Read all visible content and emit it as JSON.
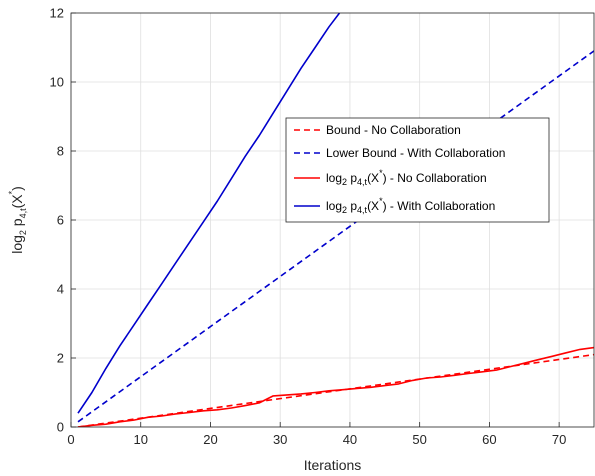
{
  "chart_data": {
    "type": "line",
    "xlabel": "Iterations",
    "ylabel": {
      "base": "log",
      "sub1": "2",
      "middle": " p",
      "sub2": "4,t",
      "arg": "(X",
      "sup": "*",
      "close": ")"
    },
    "xlim": [
      0,
      75
    ],
    "ylim": [
      0,
      12
    ],
    "xticks": [
      "0",
      "10",
      "20",
      "30",
      "40",
      "50",
      "60",
      "70"
    ],
    "yticks": [
      "0",
      "2",
      "4",
      "6",
      "8",
      "10",
      "12"
    ],
    "grid": true,
    "legend_position": "center-right",
    "series": [
      {
        "name": "Bound - No Collaboration",
        "color": "#ff0000",
        "dash": true,
        "x": [
          1,
          75
        ],
        "y": [
          0.0,
          2.1
        ]
      },
      {
        "name": "Lower Bound - With Collaboration",
        "color": "#0000cc",
        "dash": true,
        "x": [
          1,
          75
        ],
        "y": [
          0.15,
          10.9
        ]
      },
      {
        "name_parts": {
          "base": "log",
          "sub1": "2",
          "middle": " p",
          "sub2": "4,t",
          "arg": "(X",
          "sup": "*",
          "close": ") - No Collaboration"
        },
        "color": "#ff0000",
        "dash": false,
        "x": [
          1,
          3,
          5,
          7,
          9,
          11,
          13,
          15,
          17,
          19,
          21,
          23,
          25,
          27,
          29,
          31,
          33,
          35,
          37,
          39,
          41,
          43,
          45,
          47,
          49,
          51,
          53,
          55,
          57,
          59,
          61,
          63,
          65,
          67,
          69,
          71,
          73,
          75
        ],
        "y": [
          0.0,
          0.05,
          0.08,
          0.15,
          0.2,
          0.28,
          0.32,
          0.38,
          0.42,
          0.47,
          0.5,
          0.55,
          0.62,
          0.7,
          0.9,
          0.93,
          0.96,
          1.0,
          1.05,
          1.08,
          1.12,
          1.15,
          1.2,
          1.25,
          1.35,
          1.42,
          1.45,
          1.5,
          1.55,
          1.6,
          1.65,
          1.75,
          1.85,
          1.95,
          2.05,
          2.15,
          2.25,
          2.3
        ]
      },
      {
        "name_parts": {
          "base": "log",
          "sub1": "2",
          "middle": " p",
          "sub2": "4,t",
          "arg": "(X",
          "sup": "*",
          "close": ") - With Collaboration"
        },
        "color": "#0000cc",
        "dash": false,
        "x": [
          1,
          3,
          5,
          7,
          9,
          11,
          13,
          15,
          17,
          19,
          21,
          23,
          25,
          27,
          29,
          31,
          33,
          35,
          37,
          38.5
        ],
        "y": [
          0.4,
          1.0,
          1.7,
          2.35,
          2.95,
          3.55,
          4.15,
          4.75,
          5.35,
          5.95,
          6.55,
          7.2,
          7.85,
          8.45,
          9.1,
          9.75,
          10.4,
          11.0,
          11.6,
          12.0
        ]
      }
    ]
  }
}
